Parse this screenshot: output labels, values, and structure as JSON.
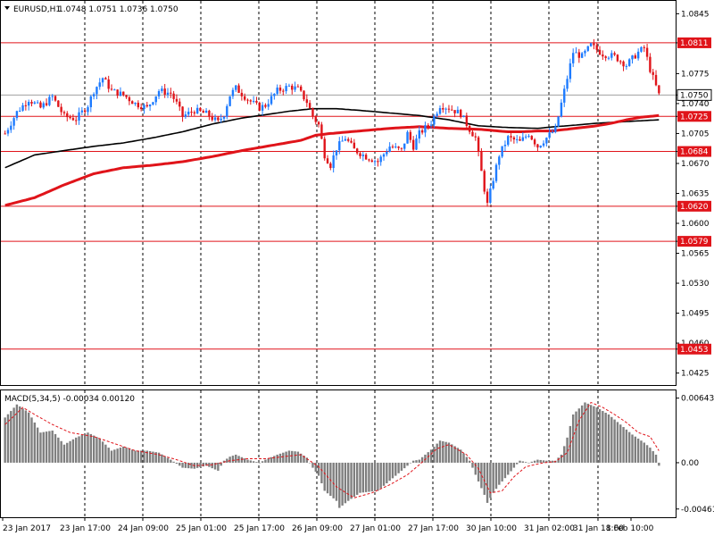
{
  "header": {
    "symbol_label": "EURUSD,H1",
    "ohlc": "1.0748 1.0751 1.0736 1.0750"
  },
  "colors": {
    "bull": "#1e7bff",
    "bear": "#e0141a",
    "level_line": "#e0141a",
    "ma_slow": "#e0141a",
    "ma_fast": "#000000",
    "histogram": "#7f7f7f",
    "signal": "#e0141a",
    "grid": "#000000"
  },
  "chart_data": [
    {
      "type": "candlestick",
      "title": "EURUSD,H1",
      "y_ticks": [
        "1.0845",
        "1.0811",
        "1.0775",
        "1.0750",
        "1.0740",
        "1.0725",
        "1.0705",
        "1.0684",
        "1.0670",
        "1.0635",
        "1.0620",
        "1.0600",
        "1.0579",
        "1.0565",
        "1.0530",
        "1.0495",
        "1.0460",
        "1.0453",
        "1.0425"
      ],
      "y_tick_values": [
        1.0845,
        1.0811,
        1.0775,
        1.075,
        1.074,
        1.0725,
        1.0705,
        1.0684,
        1.067,
        1.0635,
        1.062,
        1.06,
        1.0579,
        1.0565,
        1.053,
        1.0495,
        1.046,
        1.0453,
        1.0425
      ],
      "ylim": [
        1.0411,
        1.086
      ],
      "x_ticks": [
        "23 Jan 2017",
        "23 Jan 17:00",
        "24 Jan 09:00",
        "25 Jan 01:00",
        "25 Jan 17:00",
        "26 Jan 09:00",
        "27 Jan 01:00",
        "27 Jan 17:00",
        "30 Jan 10:00",
        "31 Jan 02:00",
        "31 Jan 18:00",
        "1 Feb 10:00"
      ],
      "levels": [
        {
          "value": 1.0811,
          "label": "1.0811"
        },
        {
          "value": 1.0725,
          "label": "1.0725"
        },
        {
          "value": 1.0684,
          "label": "1.0684"
        },
        {
          "value": 1.062,
          "label": "1.0620"
        },
        {
          "value": 1.0579,
          "label": "1.0579"
        },
        {
          "value": 1.0453,
          "label": "1.0453"
        }
      ],
      "current_price": {
        "value": 1.075,
        "label": "1.0750"
      },
      "close_path": [
        [
          0,
          1.0705
        ],
        [
          4,
          1.073
        ],
        [
          8,
          1.0745
        ],
        [
          12,
          1.0735
        ],
        [
          16,
          1.0748
        ],
        [
          20,
          1.0725
        ],
        [
          24,
          1.0722
        ],
        [
          28,
          1.0738
        ],
        [
          30,
          1.0755
        ],
        [
          33,
          1.077
        ],
        [
          36,
          1.0755
        ],
        [
          40,
          1.075
        ],
        [
          44,
          1.074
        ],
        [
          48,
          1.0735
        ],
        [
          52,
          1.0755
        ],
        [
          56,
          1.0752
        ],
        [
          58,
          1.074
        ],
        [
          60,
          1.0725
        ],
        [
          64,
          1.0732
        ],
        [
          68,
          1.0728
        ],
        [
          72,
          1.0718
        ],
        [
          74,
          1.0728
        ],
        [
          76,
          1.075
        ],
        [
          78,
          1.0758
        ],
        [
          82,
          1.0745
        ],
        [
          86,
          1.0735
        ],
        [
          88,
          1.0738
        ],
        [
          92,
          1.0755
        ],
        [
          96,
          1.076
        ],
        [
          99,
          1.0757
        ],
        [
          102,
          1.0742
        ],
        [
          104,
          1.0725
        ],
        [
          106,
          1.0715
        ],
        [
          108,
          1.068
        ],
        [
          110,
          1.0668
        ],
        [
          112,
          1.0688
        ],
        [
          115,
          1.07
        ],
        [
          118,
          1.0686
        ],
        [
          122,
          1.0678
        ],
        [
          126,
          1.0672
        ],
        [
          130,
          1.069
        ],
        [
          134,
          1.0685
        ],
        [
          136,
          1.0705
        ],
        [
          138,
          1.069
        ],
        [
          140,
          1.0705
        ],
        [
          144,
          1.0718
        ],
        [
          147,
          1.0738
        ],
        [
          150,
          1.0735
        ],
        [
          154,
          1.0728
        ],
        [
          157,
          1.071
        ],
        [
          159,
          1.07
        ],
        [
          160,
          1.068
        ],
        [
          162,
          1.064
        ],
        [
          163,
          1.0622
        ],
        [
          165,
          1.0652
        ],
        [
          167,
          1.068
        ],
        [
          170,
          1.07
        ],
        [
          174,
          1.0695
        ],
        [
          177,
          1.0705
        ],
        [
          180,
          1.069
        ],
        [
          183,
          1.07
        ],
        [
          186,
          1.071
        ],
        [
          188,
          1.074
        ],
        [
          190,
          1.077
        ],
        [
          192,
          1.08
        ],
        [
          195,
          1.0795
        ],
        [
          198,
          1.0808
        ],
        [
          202,
          1.0798
        ],
        [
          206,
          1.0795
        ],
        [
          210,
          1.0785
        ],
        [
          214,
          1.08
        ],
        [
          216,
          1.0805
        ],
        [
          218,
          1.078
        ],
        [
          221,
          1.075
        ]
      ],
      "ma_slow_path": [
        [
          0,
          1.0621
        ],
        [
          10,
          1.063
        ],
        [
          20,
          1.0645
        ],
        [
          30,
          1.0658
        ],
        [
          40,
          1.0665
        ],
        [
          50,
          1.0668
        ],
        [
          60,
          1.0672
        ],
        [
          70,
          1.0678
        ],
        [
          80,
          1.0685
        ],
        [
          90,
          1.0691
        ],
        [
          100,
          1.0697
        ],
        [
          105,
          1.0703
        ],
        [
          110,
          1.0705
        ],
        [
          120,
          1.0708
        ],
        [
          130,
          1.0711
        ],
        [
          140,
          1.0713
        ],
        [
          150,
          1.0711
        ],
        [
          160,
          1.071
        ],
        [
          170,
          1.0707
        ],
        [
          175,
          1.0707
        ],
        [
          180,
          1.0708
        ],
        [
          185,
          1.0708
        ],
        [
          190,
          1.071
        ],
        [
          200,
          1.0714
        ],
        [
          205,
          1.0717
        ],
        [
          210,
          1.0721
        ],
        [
          215,
          1.0724
        ],
        [
          221,
          1.0726
        ]
      ],
      "ma_fast_path": [
        [
          0,
          1.0665
        ],
        [
          10,
          1.068
        ],
        [
          20,
          1.0685
        ],
        [
          30,
          1.069
        ],
        [
          40,
          1.0694
        ],
        [
          50,
          1.07
        ],
        [
          60,
          1.0707
        ],
        [
          70,
          1.0716
        ],
        [
          80,
          1.0723
        ],
        [
          90,
          1.0728
        ],
        [
          96,
          1.0731
        ],
        [
          104,
          1.0734
        ],
        [
          112,
          1.0734
        ],
        [
          120,
          1.0732
        ],
        [
          130,
          1.0729
        ],
        [
          140,
          1.0726
        ],
        [
          150,
          1.0721
        ],
        [
          160,
          1.0714
        ],
        [
          170,
          1.0712
        ],
        [
          180,
          1.0711
        ],
        [
          186,
          1.0713
        ],
        [
          190,
          1.0714
        ],
        [
          200,
          1.0717
        ],
        [
          210,
          1.0719
        ],
        [
          221,
          1.0721
        ]
      ]
    },
    {
      "type": "bar",
      "title": "MACD(5,34,5) -0.00034 0.00120",
      "y_ticks": [
        "0.00643",
        "0.00",
        "-0.00461"
      ],
      "y_tick_values": [
        0.00643,
        0.0,
        -0.00461
      ],
      "ylim": [
        -0.00543,
        0.0072
      ],
      "histogram_path": [
        [
          0,
          0.0045
        ],
        [
          4,
          0.0058
        ],
        [
          8,
          0.005
        ],
        [
          12,
          0.003
        ],
        [
          16,
          0.0032
        ],
        [
          20,
          0.0018
        ],
        [
          24,
          0.0025
        ],
        [
          28,
          0.003
        ],
        [
          32,
          0.0024
        ],
        [
          36,
          0.0012
        ],
        [
          40,
          0.0016
        ],
        [
          44,
          0.0012
        ],
        [
          48,
          0.0012
        ],
        [
          52,
          0.001
        ],
        [
          56,
          0.0003
        ],
        [
          60,
          -0.0005
        ],
        [
          64,
          -0.0006
        ],
        [
          68,
          -0.0003
        ],
        [
          72,
          -0.0008
        ],
        [
          74,
          0.0002
        ],
        [
          76,
          0.0006
        ],
        [
          78,
          0.0008
        ],
        [
          82,
          0.0003
        ],
        [
          86,
          0.0
        ],
        [
          88,
          0.0003
        ],
        [
          92,
          0.0008
        ],
        [
          96,
          0.0012
        ],
        [
          99,
          0.0011
        ],
        [
          102,
          0.0005
        ],
        [
          104,
          -0.0005
        ],
        [
          106,
          -0.0013
        ],
        [
          108,
          -0.0028
        ],
        [
          112,
          -0.0038
        ],
        [
          113,
          -0.0045
        ],
        [
          116,
          -0.0038
        ],
        [
          120,
          -0.003
        ],
        [
          126,
          -0.0028
        ],
        [
          130,
          -0.0018
        ],
        [
          134,
          -0.0008
        ],
        [
          138,
          0.0002
        ],
        [
          140,
          0.0003
        ],
        [
          144,
          0.0013
        ],
        [
          147,
          0.0022
        ],
        [
          150,
          0.002
        ],
        [
          154,
          0.0013
        ],
        [
          157,
          0.0002
        ],
        [
          159,
          -0.0012
        ],
        [
          162,
          -0.0032
        ],
        [
          163,
          -0.004
        ],
        [
          165,
          -0.003
        ],
        [
          167,
          -0.0022
        ],
        [
          170,
          -0.0012
        ],
        [
          174,
          0.0002
        ],
        [
          177,
          0.0
        ],
        [
          180,
          0.0003
        ],
        [
          183,
          0.0002
        ],
        [
          186,
          0.0002
        ],
        [
          188,
          0.0008
        ],
        [
          190,
          0.0025
        ],
        [
          192,
          0.0048
        ],
        [
          196,
          0.006
        ],
        [
          200,
          0.0055
        ],
        [
          204,
          0.0048
        ],
        [
          208,
          0.0038
        ],
        [
          212,
          0.0028
        ],
        [
          216,
          0.002
        ],
        [
          218,
          0.0015
        ],
        [
          220,
          0.0008
        ],
        [
          221,
          -0.0003
        ]
      ],
      "signal_path": [
        [
          0,
          0.0038
        ],
        [
          6,
          0.0055
        ],
        [
          10,
          0.0048
        ],
        [
          16,
          0.0038
        ],
        [
          22,
          0.003
        ],
        [
          30,
          0.0026
        ],
        [
          36,
          0.002
        ],
        [
          44,
          0.0012
        ],
        [
          52,
          0.0008
        ],
        [
          58,
          0.0003
        ],
        [
          64,
          -0.0003
        ],
        [
          70,
          -0.0002
        ],
        [
          76,
          0.0002
        ],
        [
          82,
          0.0004
        ],
        [
          88,
          0.0004
        ],
        [
          94,
          0.0006
        ],
        [
          100,
          0.0008
        ],
        [
          106,
          -0.0004
        ],
        [
          112,
          -0.0024
        ],
        [
          118,
          -0.0035
        ],
        [
          124,
          -0.003
        ],
        [
          130,
          -0.0022
        ],
        [
          136,
          -0.0012
        ],
        [
          140,
          -0.0002
        ],
        [
          146,
          0.0014
        ],
        [
          150,
          0.0018
        ],
        [
          156,
          0.0008
        ],
        [
          160,
          -0.0006
        ],
        [
          164,
          -0.003
        ],
        [
          168,
          -0.0028
        ],
        [
          172,
          -0.0014
        ],
        [
          176,
          -0.0004
        ],
        [
          182,
          0.0
        ],
        [
          186,
          0.0001
        ],
        [
          190,
          0.001
        ],
        [
          194,
          0.0042
        ],
        [
          198,
          0.006
        ],
        [
          202,
          0.0055
        ],
        [
          206,
          0.0048
        ],
        [
          210,
          0.004
        ],
        [
          214,
          0.003
        ],
        [
          218,
          0.0026
        ],
        [
          221,
          0.0012
        ]
      ]
    }
  ]
}
